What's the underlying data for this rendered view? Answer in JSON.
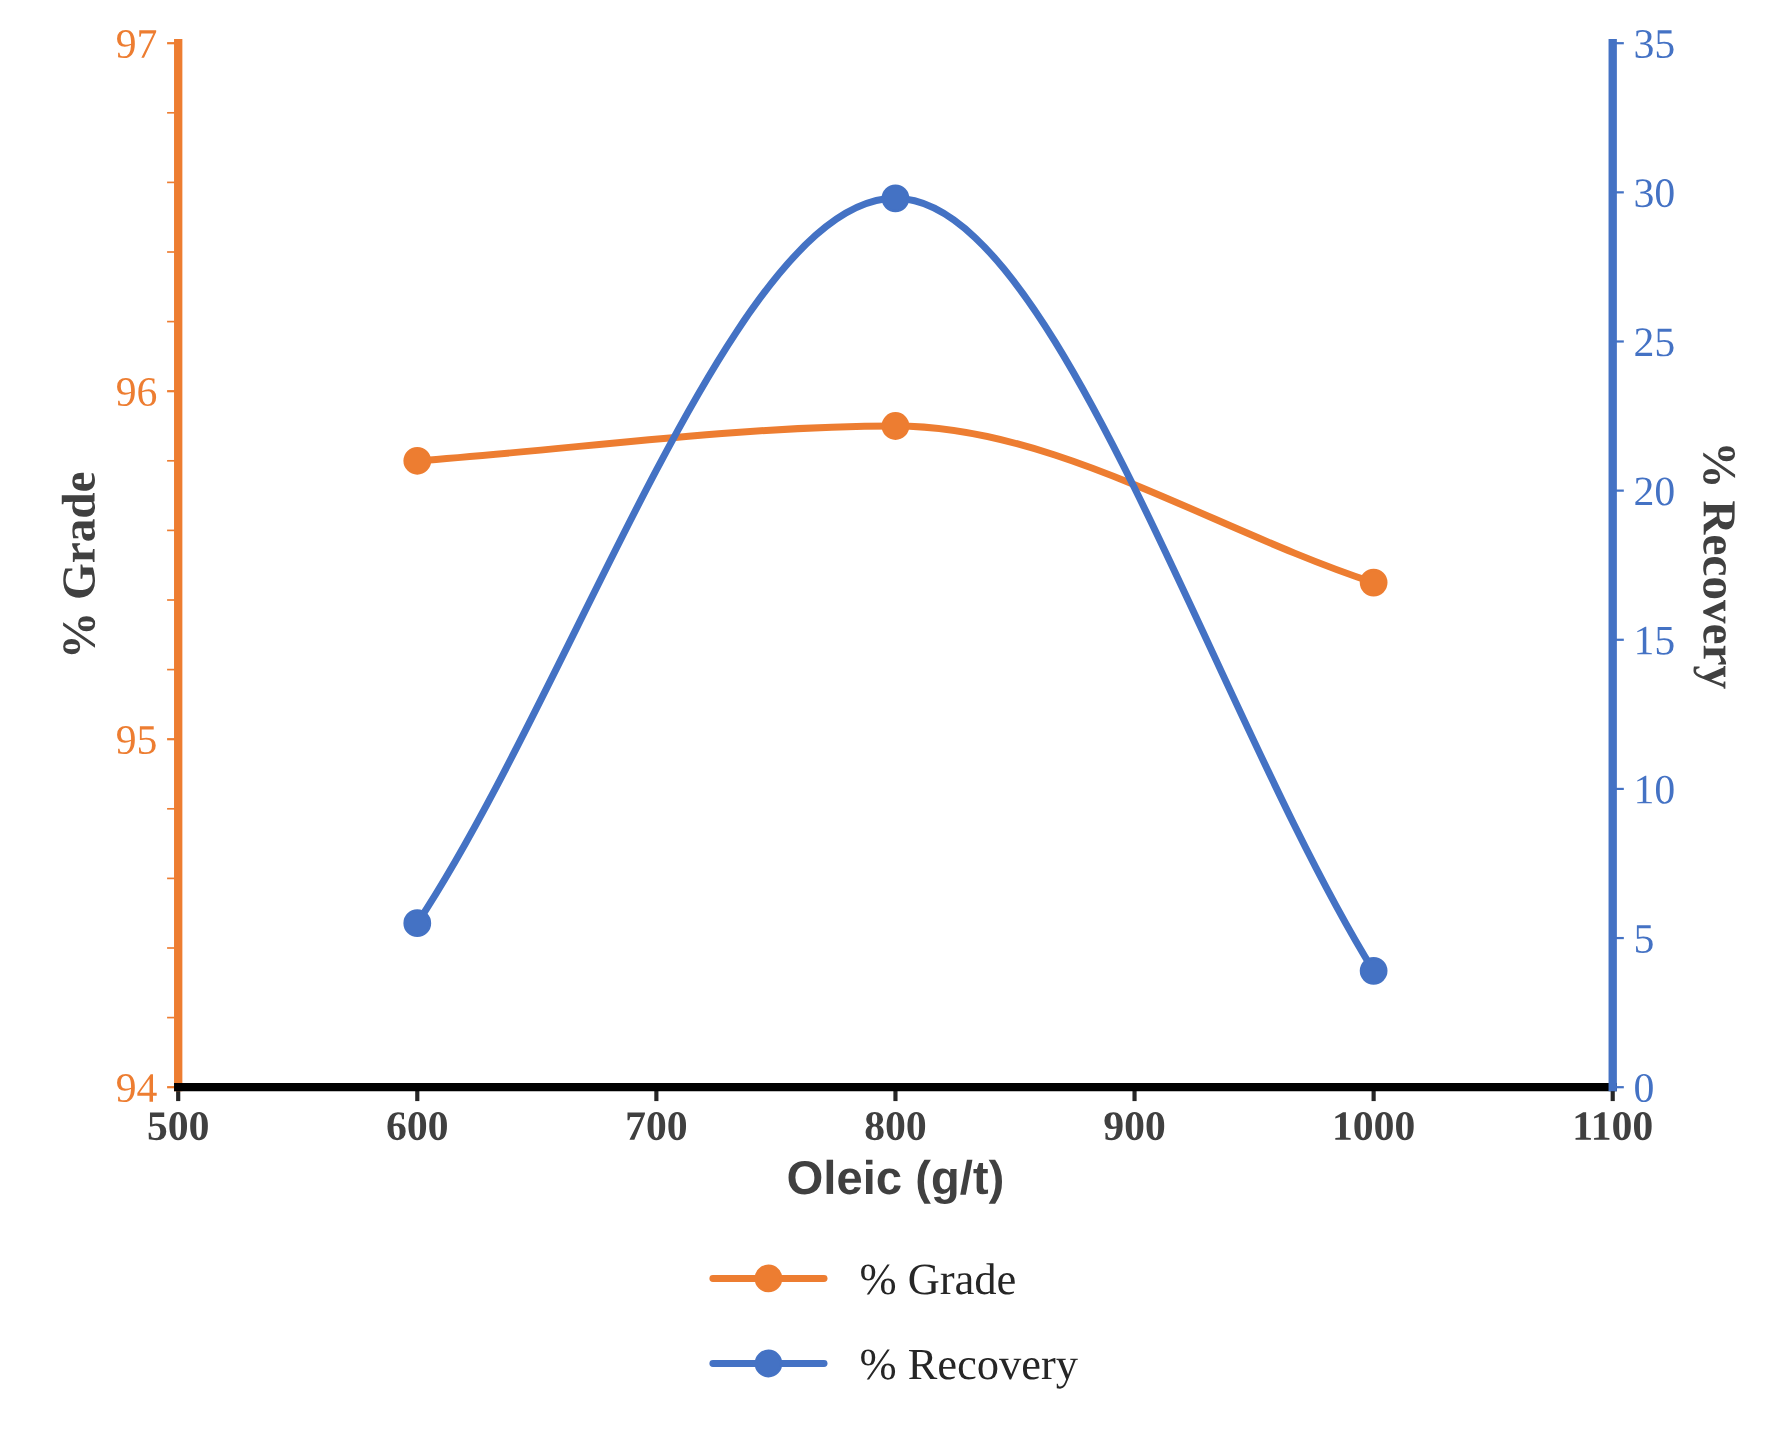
{
  "chart_data": {
    "type": "line",
    "xlabel": "Oleic (g/t)",
    "ylabel": "% Grade",
    "y2label": "% Recovery",
    "x": [
      600,
      800,
      1000
    ],
    "series": [
      {
        "name": "% Grade",
        "color": "#ed7d31",
        "values": [
          95.8,
          95.9,
          95.45
        ]
      },
      {
        "name": "% Recovery",
        "color": "#4472c4",
        "values": [
          5.5,
          29.8,
          3.9
        ],
        "axis": "y2"
      }
    ],
    "xlim": [
      500,
      1100
    ],
    "xticks": [
      500,
      600,
      700,
      800,
      900,
      1000,
      1100
    ],
    "ylim": [
      94,
      97
    ],
    "yticks": [
      94,
      95,
      96,
      97
    ],
    "y2lim": [
      0,
      35
    ],
    "y2ticks": [
      0,
      5,
      10,
      15,
      20,
      25,
      30,
      35
    ],
    "marker": "circle",
    "line_style": "solid",
    "grid": false,
    "legend": "bottom"
  }
}
